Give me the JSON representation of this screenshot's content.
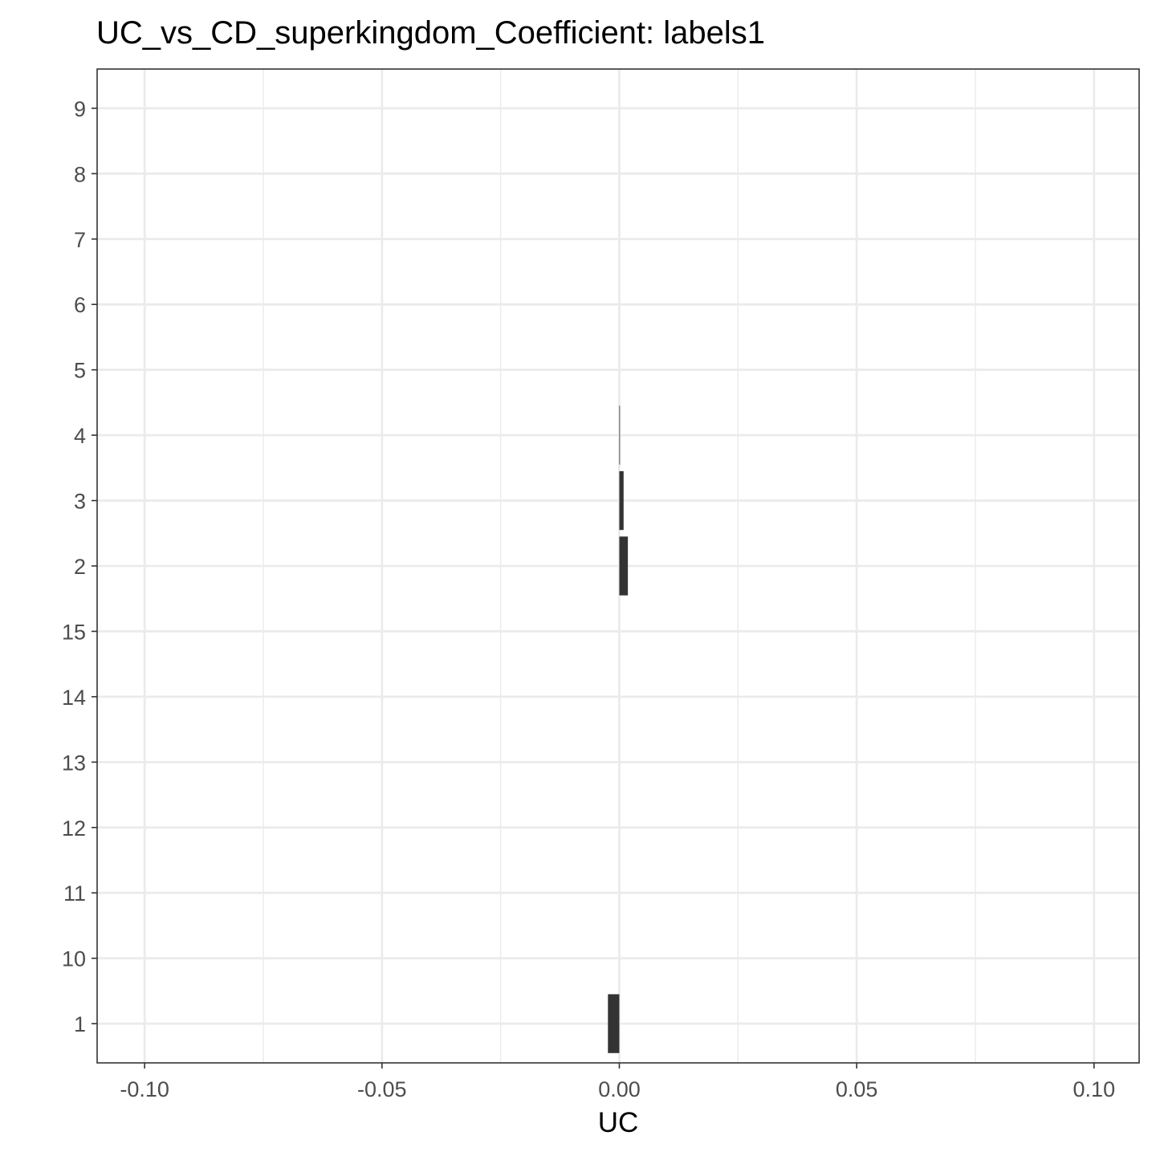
{
  "chart_data": {
    "type": "bar",
    "orientation": "horizontal",
    "title": "UC_vs_CD_superkingdom_Coefficient: labels1",
    "xlabel": "UC",
    "ylabel": "",
    "xlim": [
      -0.11,
      0.1095
    ],
    "x_ticks": [
      -0.1,
      -0.05,
      0.0,
      0.05,
      0.1
    ],
    "x_tick_labels": [
      "-0.10",
      "-0.05",
      "0.00",
      "0.05",
      "0.10"
    ],
    "categories": [
      "1",
      "10",
      "11",
      "12",
      "13",
      "14",
      "15",
      "2",
      "3",
      "4",
      "5",
      "6",
      "7",
      "8",
      "9"
    ],
    "values": [
      -0.0024,
      0,
      0,
      0,
      0,
      0,
      0,
      0.0018,
      0.0009,
      0.0001,
      0,
      0,
      0,
      0,
      0
    ],
    "bar_color": "#333333",
    "grid": true,
    "legend": "none"
  }
}
